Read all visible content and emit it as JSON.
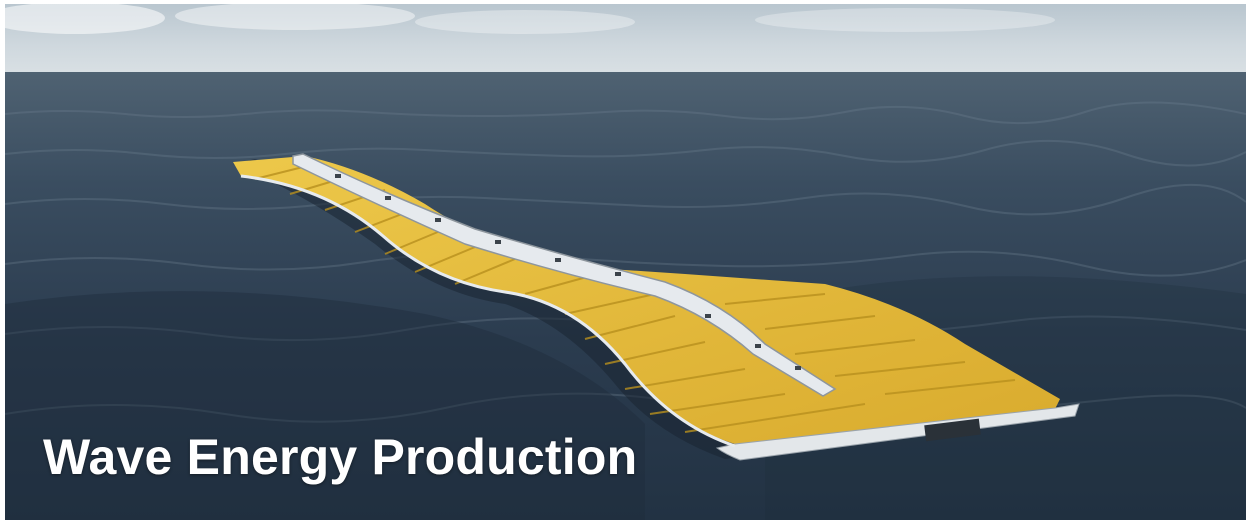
{
  "caption": "Wave Energy Production",
  "colors": {
    "sky": "#c7d2da",
    "sea": "#2c3e52",
    "device_yellow": "#e4bb3e",
    "device_frame": "#dfe4e8",
    "caption_text": "#ffffff"
  }
}
